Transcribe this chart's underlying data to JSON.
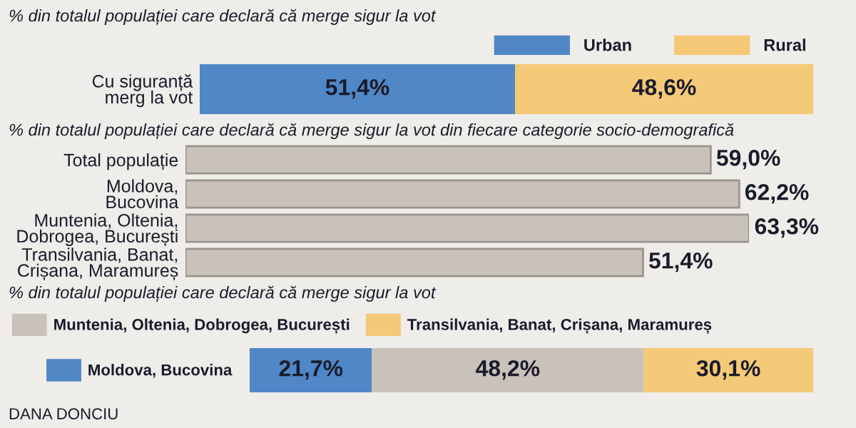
{
  "chart_data": [
    {
      "type": "bar",
      "orientation": "horizontal",
      "stacked": true,
      "title": "% din totalul populației care declară că merge sigur la vot",
      "categories": [
        "Cu siguranță\nmerg la vot"
      ],
      "legend": "top right",
      "tick_labels": "y",
      "series": [
        {
          "name": "Urban",
          "color": "#5087c6",
          "values": [
            51.4
          ],
          "value_labels": [
            "51,4%"
          ]
        },
        {
          "name": "Rural",
          "color": "#f4c978",
          "values": [
            48.6
          ],
          "value_labels": [
            "48,6%"
          ]
        }
      ]
    },
    {
      "type": "bar",
      "orientation": "horizontal",
      "title": "% din totalul populației care declară că merge sigur la vot din fiecare categorie socio-demografică",
      "categories": [
        "Total populație",
        "Moldova,\nBucovina",
        "Muntenia, Oltenia,\nDobrogea, București",
        "Transilvania, Banat,\nCrișana, Maramureș"
      ],
      "tick_labels": "y",
      "color": "#c8c2ba",
      "values": [
        59.0,
        62.2,
        63.3,
        51.4
      ],
      "value_labels": [
        "59,0%",
        "62,2%",
        "63,3%",
        "51,4%"
      ]
    },
    {
      "type": "bar",
      "orientation": "horizontal",
      "stacked": true,
      "title": "% din totalul populației care declară că merge sigur la vot",
      "categories": [
        null
      ],
      "legend": "left",
      "tick_labels": "y",
      "annotations": [
        "DANA DONCIU"
      ],
      "series": [
        {
          "name": "Moldova, Bucovina",
          "color": "#5087c6",
          "values": [
            21.7
          ],
          "value_labels": [
            "21,7%"
          ]
        },
        {
          "name": "Muntenia, Oltenia, Dobrogea, București",
          "color": "#c8c2ba",
          "values": [
            48.2
          ],
          "value_labels": [
            "48,2%"
          ]
        },
        {
          "name": "Transilvania, Banat, Crișana, Maramureș",
          "color": "#f4c978",
          "values": [
            30.1
          ],
          "value_labels": [
            "30,1%"
          ]
        }
      ]
    }
  ]
}
